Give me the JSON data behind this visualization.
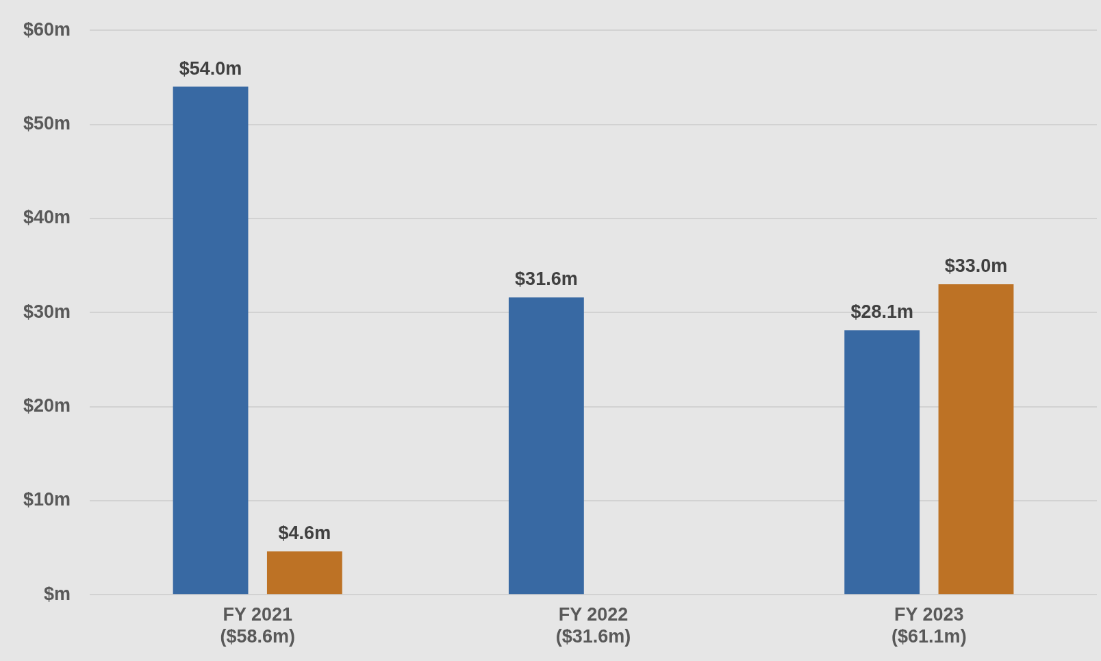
{
  "chart_data": {
    "type": "bar",
    "categories": [
      "FY 2021\n($58.6m)",
      "FY 2022\n($31.6m)",
      "FY 2023\n($61.1m)"
    ],
    "series": [
      {
        "color": "#3869a3",
        "values": [
          54.0,
          31.6,
          28.1
        ],
        "value_labels": [
          "$54.0m",
          "$31.6m",
          "$28.1m"
        ]
      },
      {
        "color": "#bd7225",
        "values": [
          4.6,
          null,
          33.0
        ],
        "value_labels": [
          "$4.6m",
          null,
          "$33.0m"
        ]
      }
    ],
    "ylim": [
      0,
      60
    ],
    "yticks": [
      {
        "value": 0,
        "label": "$m"
      },
      {
        "value": 10,
        "label": "$10m"
      },
      {
        "value": 20,
        "label": "$20m"
      },
      {
        "value": 30,
        "label": "$30m"
      },
      {
        "value": 40,
        "label": "$40m"
      },
      {
        "value": 50,
        "label": "$50m"
      },
      {
        "value": 60,
        "label": "$60m"
      }
    ],
    "grid": "y",
    "legend": false
  }
}
